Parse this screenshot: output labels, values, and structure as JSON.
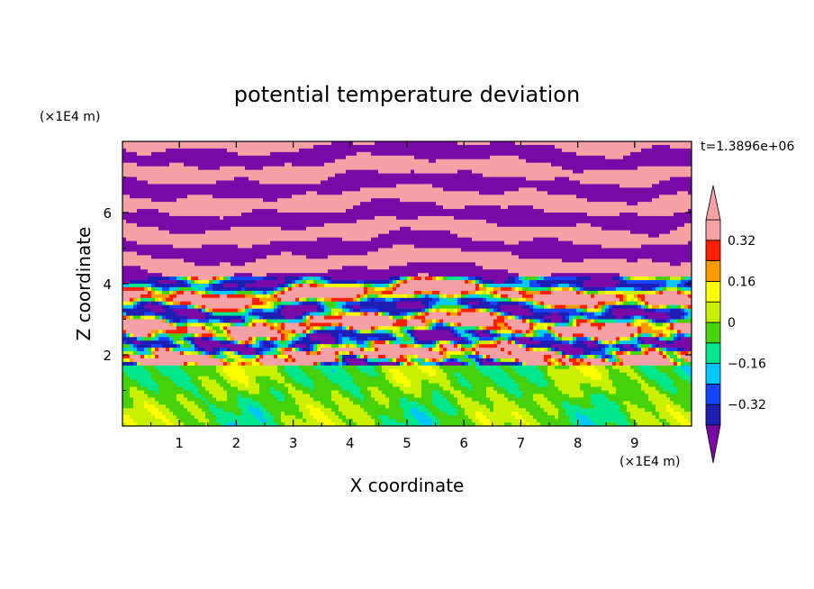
{
  "chart_data": {
    "type": "heatmap",
    "title": "potential temperature deviation",
    "xlabel": "X coordinate",
    "ylabel": "Z coordinate",
    "x_unit": "(×1E4 m)",
    "y_unit": "(×1E4 m)",
    "time_label": "t=1.3896e+06",
    "xlim": [
      0,
      10
    ],
    "ylim": [
      0,
      8
    ],
    "x_ticks": [
      "1",
      "2",
      "3",
      "4",
      "5",
      "6",
      "7",
      "8",
      "9"
    ],
    "y_ticks": [
      "2",
      "4",
      "6"
    ],
    "colorbar": {
      "labels": [
        "0.32",
        "0.16",
        "0",
        "−0.16",
        "−0.32"
      ],
      "label_values": [
        0.32,
        0.16,
        0,
        -0.16,
        -0.32
      ],
      "levels": [
        -0.4,
        -0.32,
        -0.24,
        -0.16,
        -0.08,
        0,
        0.08,
        0.16,
        0.24,
        0.32,
        0.4
      ],
      "colors": [
        "#7a0aa8",
        "#1e1eb4",
        "#1446ff",
        "#00c8ff",
        "#00e68c",
        "#46d20a",
        "#c8f000",
        "#ffff00",
        "#ff9900",
        "#ff1e00",
        "#f4a0a4"
      ],
      "extend": "both"
    }
  }
}
